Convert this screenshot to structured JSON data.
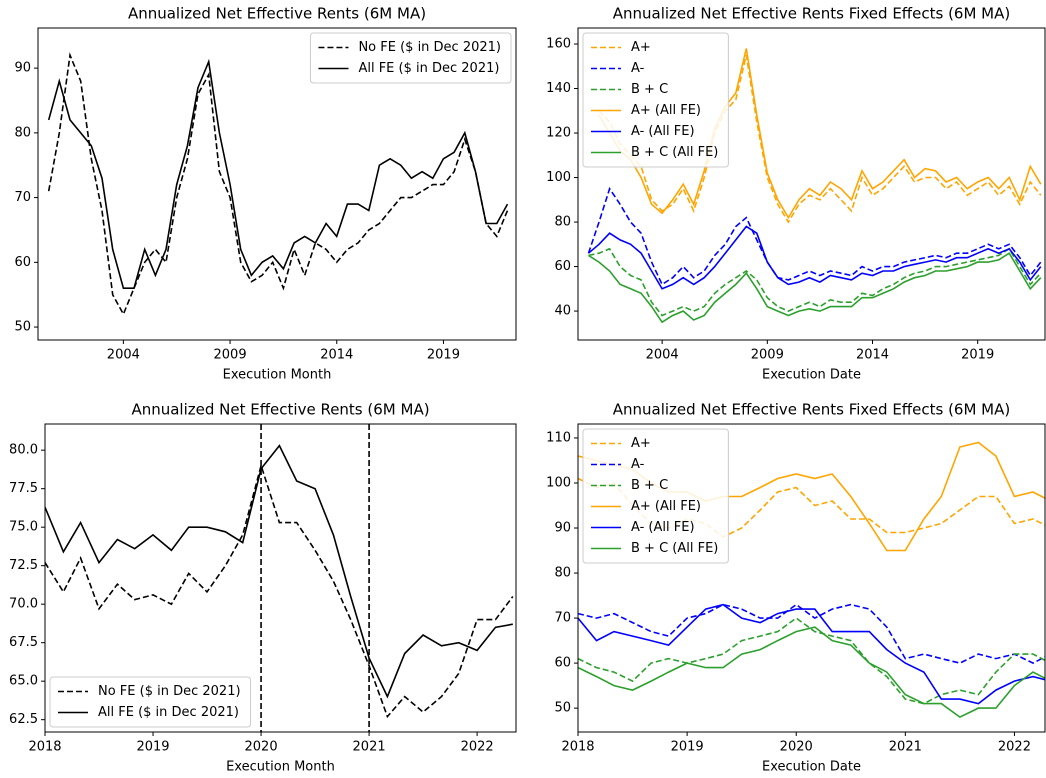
{
  "chart_data": [
    {
      "type": "line",
      "title": "Annualized Net Effective Rents (6M MA)",
      "xlabel": "Execution Month",
      "x": [
        2000.5,
        2001,
        2001.5,
        2002,
        2002.5,
        2003,
        2003.5,
        2004,
        2004.5,
        2005,
        2005.5,
        2006,
        2006.5,
        2007,
        2007.5,
        2008,
        2008.5,
        2009,
        2009.5,
        2010,
        2010.5,
        2011,
        2011.5,
        2012,
        2012.5,
        2013,
        2013.5,
        2014,
        2014.5,
        2015,
        2015.5,
        2016,
        2016.5,
        2017,
        2017.5,
        2018,
        2018.5,
        2019,
        2019.5,
        2020,
        2020.5,
        2021,
        2021.5,
        2022
      ],
      "xlim": [
        2000,
        2022.4
      ],
      "xticks": [
        2004,
        2009,
        2014,
        2019
      ],
      "ylim": [
        48,
        96.2
      ],
      "yticks": [
        50,
        60,
        70,
        80,
        90
      ],
      "legend": "upper right",
      "series": [
        {
          "name": "No FE ($ in Dec 2021)",
          "color": "#000000",
          "dashed": true,
          "values": [
            71,
            80,
            92,
            88,
            76,
            68,
            55,
            52,
            56,
            60,
            62,
            60,
            70,
            76,
            86,
            89,
            74,
            70,
            60,
            57,
            58,
            60,
            56,
            62,
            58,
            63,
            62,
            60,
            62,
            63,
            65,
            66,
            68,
            70,
            70,
            71,
            72,
            72,
            74,
            79,
            74,
            66,
            64,
            68
          ]
        },
        {
          "name": "All FE ($ in Dec 2021)",
          "color": "#000000",
          "dashed": false,
          "values": [
            82,
            88,
            82,
            80,
            78,
            73,
            62,
            56,
            56,
            62,
            58,
            62,
            72,
            78,
            87,
            91,
            80,
            72,
            62,
            58,
            60,
            61,
            59,
            63,
            64,
            63,
            66,
            64,
            69,
            69,
            68,
            75,
            76,
            75,
            73,
            74,
            73,
            76,
            77,
            80,
            74,
            66,
            66,
            69
          ]
        }
      ]
    },
    {
      "type": "line",
      "title": "Annualized Net Effective Rents Fixed Effects (6M MA)",
      "xlabel": "Execution Date",
      "x": [
        2000.5,
        2001,
        2001.5,
        2002,
        2002.5,
        2003,
        2003.5,
        2004,
        2004.5,
        2005,
        2005.5,
        2006,
        2006.5,
        2007,
        2007.5,
        2008,
        2008.5,
        2009,
        2009.5,
        2010,
        2010.5,
        2011,
        2011.5,
        2012,
        2012.5,
        2013,
        2013.5,
        2014,
        2014.5,
        2015,
        2015.5,
        2016,
        2016.5,
        2017,
        2017.5,
        2018,
        2018.5,
        2019,
        2019.5,
        2020,
        2020.5,
        2021,
        2021.5,
        2022
      ],
      "xlim": [
        2000,
        2022.2
      ],
      "xticks": [
        2004,
        2009,
        2014,
        2019
      ],
      "ylim": [
        27,
        167.2
      ],
      "yticks": [
        40,
        60,
        80,
        100,
        120,
        140,
        160
      ],
      "legend": "upper left",
      "series": [
        {
          "name": "A+",
          "color": "#ffa500",
          "dashed": true,
          "values": [
            null,
            130,
            125,
            115,
            110,
            105,
            90,
            85,
            88,
            95,
            85,
            100,
            120,
            130,
            135,
            155,
            125,
            100,
            88,
            80,
            88,
            92,
            90,
            95,
            90,
            85,
            100,
            92,
            95,
            100,
            105,
            98,
            100,
            100,
            95,
            98,
            92,
            95,
            98,
            92,
            96,
            88,
            98,
            92
          ]
        },
        {
          "name": "A-",
          "color": "#0000ff",
          "dashed": true,
          "values": [
            66,
            80,
            95,
            88,
            80,
            75,
            62,
            52,
            55,
            60,
            55,
            58,
            65,
            70,
            78,
            82,
            72,
            62,
            55,
            54,
            56,
            58,
            56,
            58,
            57,
            56,
            60,
            58,
            60,
            60,
            62,
            63,
            64,
            65,
            64,
            66,
            66,
            68,
            70,
            68,
            70,
            64,
            56,
            62
          ]
        },
        {
          "name": "B + C",
          "color": "#2ca02c",
          "dashed": true,
          "values": [
            65,
            66,
            68,
            60,
            56,
            54,
            44,
            38,
            40,
            42,
            40,
            42,
            48,
            52,
            55,
            58,
            54,
            46,
            42,
            40,
            42,
            44,
            42,
            45,
            44,
            44,
            48,
            47,
            50,
            52,
            55,
            57,
            58,
            60,
            60,
            61,
            62,
            63,
            64,
            65,
            68,
            60,
            52,
            57
          ]
        },
        {
          "name": "A+ (All FE)",
          "color": "#ffa500",
          "dashed": false,
          "values": [
            null,
            128,
            120,
            112,
            108,
            100,
            88,
            84,
            90,
            97,
            88,
            103,
            122,
            132,
            138,
            158,
            128,
            102,
            90,
            82,
            90,
            95,
            92,
            98,
            95,
            90,
            103,
            95,
            98,
            103,
            108,
            100,
            104,
            103,
            98,
            100,
            95,
            98,
            100,
            95,
            100,
            90,
            105,
            97
          ]
        },
        {
          "name": "A- (All FE)",
          "color": "#0000ff",
          "dashed": false,
          "values": [
            66,
            70,
            75,
            72,
            70,
            66,
            58,
            50,
            52,
            55,
            52,
            55,
            60,
            66,
            72,
            78,
            75,
            62,
            55,
            52,
            53,
            55,
            53,
            56,
            55,
            54,
            57,
            56,
            58,
            58,
            60,
            61,
            62,
            63,
            62,
            64,
            64,
            66,
            68,
            66,
            68,
            62,
            54,
            60
          ]
        },
        {
          "name": "B + C (All FE)",
          "color": "#2ca02c",
          "dashed": false,
          "values": [
            65,
            62,
            58,
            52,
            50,
            48,
            42,
            35,
            38,
            40,
            36,
            38,
            44,
            48,
            52,
            57,
            50,
            42,
            40,
            38,
            40,
            41,
            40,
            42,
            42,
            42,
            46,
            46,
            48,
            50,
            53,
            55,
            56,
            58,
            58,
            59,
            60,
            62,
            62,
            63,
            66,
            58,
            50,
            55
          ]
        }
      ]
    },
    {
      "type": "line",
      "title": "Annualized Net Effective Rents (6M MA)",
      "xlabel": "Execution Month",
      "x": [
        2018,
        2018.17,
        2018.33,
        2018.5,
        2018.67,
        2018.83,
        2019,
        2019.17,
        2019.33,
        2019.5,
        2019.67,
        2019.83,
        2020,
        2020.17,
        2020.33,
        2020.5,
        2020.67,
        2020.83,
        2021,
        2021.17,
        2021.33,
        2021.5,
        2021.67,
        2021.83,
        2022,
        2022.17,
        2022.33
      ],
      "xlim": [
        2018,
        2022.36
      ],
      "xticks": [
        2018,
        2019,
        2020,
        2021,
        2022
      ],
      "ylim": [
        61.7,
        81.7
      ],
      "yticks": [
        62.5,
        {
          "value": 65,
          "label": "65.0"
        },
        67.5,
        {
          "value": 70,
          "label": "70.0"
        },
        72.5,
        {
          "value": 75,
          "label": "75.0"
        },
        77.5,
        {
          "value": 80,
          "label": "80.0"
        }
      ],
      "vlines": [
        2020,
        2021
      ],
      "legend": "lower left",
      "series": [
        {
          "name": "No FE ($ in Dec 2021)",
          "color": "#000000",
          "dashed": true,
          "values": [
            72.7,
            70.8,
            73.0,
            69.7,
            71.3,
            70.3,
            70.6,
            70.0,
            72.0,
            70.8,
            72.5,
            74.5,
            79.0,
            75.3,
            75.3,
            73.5,
            71.5,
            69.0,
            66.0,
            62.7,
            64.0,
            63.0,
            64.0,
            65.5,
            69.0,
            69.0,
            70.5
          ]
        },
        {
          "name": "All FE ($ in Dec 2021)",
          "color": "#000000",
          "dashed": false,
          "values": [
            76.3,
            73.4,
            75.3,
            72.7,
            74.2,
            73.6,
            74.5,
            73.5,
            75.0,
            75.0,
            74.7,
            74.0,
            78.8,
            80.3,
            78.0,
            77.5,
            74.5,
            70.5,
            66.5,
            64.0,
            66.8,
            68.0,
            67.3,
            67.5,
            67.0,
            68.5,
            68.7
          ]
        }
      ]
    },
    {
      "type": "line",
      "title": "Annualized Net Effective Rents Fixed Effects (6M MA)",
      "xlabel": "Execution Date",
      "x": [
        2018,
        2018.17,
        2018.33,
        2018.5,
        2018.67,
        2018.83,
        2019,
        2019.17,
        2019.33,
        2019.5,
        2019.67,
        2019.83,
        2020,
        2020.17,
        2020.33,
        2020.5,
        2020.67,
        2020.83,
        2021,
        2021.17,
        2021.33,
        2021.5,
        2021.67,
        2021.83,
        2022,
        2022.17,
        2022.33
      ],
      "xlim": [
        2018,
        2022.28
      ],
      "xticks": [
        2018,
        2019,
        2020,
        2021,
        2022
      ],
      "ylim": [
        44.7,
        113.1
      ],
      "yticks": [
        50,
        60,
        70,
        80,
        90,
        100,
        110
      ],
      "legend": "upper left",
      "series": [
        {
          "name": "A+",
          "color": "#ffa500",
          "dashed": true,
          "values": [
            101,
            99,
            100,
            95,
            91,
            90,
            92,
            91,
            88,
            90,
            94,
            98,
            99,
            95,
            96,
            92,
            92,
            89,
            89,
            90,
            91,
            94,
            97,
            97,
            91,
            92,
            90
          ]
        },
        {
          "name": "A-",
          "color": "#0000ff",
          "dashed": true,
          "values": [
            71,
            70,
            71,
            69,
            67,
            66,
            70,
            71,
            73,
            72,
            70,
            70,
            73,
            70,
            72,
            73,
            72,
            68,
            61,
            62,
            61,
            60,
            62,
            61,
            62,
            60,
            62
          ]
        },
        {
          "name": "B + C",
          "color": "#2ca02c",
          "dashed": true,
          "values": [
            61,
            59,
            58,
            56,
            60,
            61,
            60,
            61,
            62,
            65,
            66,
            67,
            70,
            67,
            66,
            65,
            60,
            57,
            52,
            51,
            53,
            54,
            53,
            58,
            62,
            62,
            60
          ]
        },
        {
          "name": "A+ (All FE)",
          "color": "#ffa500",
          "dashed": false,
          "values": [
            106,
            105,
            104,
            103,
            100,
            98,
            98,
            96,
            97,
            97,
            99,
            101,
            102,
            101,
            102,
            97,
            91,
            85,
            85,
            92,
            97,
            108,
            109,
            106,
            97,
            98,
            96
          ]
        },
        {
          "name": "A- (All FE)",
          "color": "#0000ff",
          "dashed": false,
          "values": [
            70,
            65,
            67,
            66,
            65,
            64,
            68,
            72,
            73,
            70,
            69,
            71,
            72,
            72,
            67,
            67,
            67,
            63,
            60,
            58,
            52,
            52,
            51,
            54,
            56,
            57,
            56
          ]
        },
        {
          "name": "B + C (All FE)",
          "color": "#2ca02c",
          "dashed": false,
          "values": [
            59,
            57,
            55,
            54,
            56,
            58,
            60,
            59,
            59,
            62,
            63,
            65,
            67,
            68,
            65,
            64,
            60,
            58,
            53,
            51,
            51,
            48,
            50,
            50,
            55,
            58,
            56
          ]
        }
      ]
    }
  ]
}
